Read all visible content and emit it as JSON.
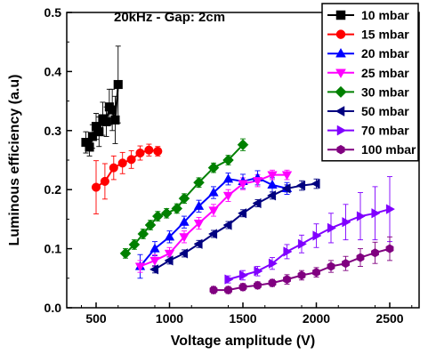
{
  "chart_data": {
    "type": "scatter",
    "title": "20kHz - Gap: 2cm",
    "xlabel": "Voltage amplitude (V)",
    "ylabel": "Luminous efficiency (a.u)",
    "xlim": [
      300,
      2700
    ],
    "ylim": [
      0.0,
      0.5
    ],
    "x_ticks": [
      500,
      1000,
      1500,
      2000,
      2500
    ],
    "y_ticks": [
      0.0,
      0.1,
      0.2,
      0.3,
      0.4,
      0.5
    ],
    "x_tick_labels": [
      "500",
      "1000",
      "1500",
      "2000",
      "2500"
    ],
    "y_tick_labels": [
      "0.0",
      "0.1",
      "0.2",
      "0.3",
      "0.4",
      "0.5"
    ],
    "legend_position": "top-right",
    "grid": false,
    "series": [
      {
        "name": "10 mbar",
        "color": "#000000",
        "marker": "square",
        "points": [
          {
            "x": 430,
            "y": 0.28,
            "err": 0.018
          },
          {
            "x": 455,
            "y": 0.272,
            "err": 0.015
          },
          {
            "x": 475,
            "y": 0.29,
            "err": 0.02
          },
          {
            "x": 500,
            "y": 0.307,
            "err": 0.022
          },
          {
            "x": 520,
            "y": 0.298,
            "err": 0.025
          },
          {
            "x": 545,
            "y": 0.32,
            "err": 0.028
          },
          {
            "x": 570,
            "y": 0.315,
            "err": 0.025
          },
          {
            "x": 590,
            "y": 0.34,
            "err": 0.03
          },
          {
            "x": 610,
            "y": 0.335,
            "err": 0.035
          },
          {
            "x": 630,
            "y": 0.318,
            "err": 0.04
          },
          {
            "x": 650,
            "y": 0.378,
            "err": 0.065
          }
        ]
      },
      {
        "name": "15 mbar",
        "color": "#ff0000",
        "marker": "circle",
        "points": [
          {
            "x": 500,
            "y": 0.204,
            "err": 0.045
          },
          {
            "x": 560,
            "y": 0.214,
            "err": 0.03
          },
          {
            "x": 620,
            "y": 0.237,
            "err": 0.02
          },
          {
            "x": 680,
            "y": 0.245,
            "err": 0.018
          },
          {
            "x": 740,
            "y": 0.251,
            "err": 0.015
          },
          {
            "x": 800,
            "y": 0.262,
            "err": 0.012
          },
          {
            "x": 860,
            "y": 0.267,
            "err": 0.01
          },
          {
            "x": 920,
            "y": 0.265,
            "err": 0.008
          }
        ]
      },
      {
        "name": "20 mbar",
        "color": "#0000ff",
        "marker": "triangle-up",
        "points": [
          {
            "x": 800,
            "y": 0.07,
            "err": 0.02
          },
          {
            "x": 900,
            "y": 0.1,
            "err": 0.012
          },
          {
            "x": 1000,
            "y": 0.12,
            "err": 0.01
          },
          {
            "x": 1100,
            "y": 0.145,
            "err": 0.01
          },
          {
            "x": 1200,
            "y": 0.172,
            "err": 0.01
          },
          {
            "x": 1300,
            "y": 0.195,
            "err": 0.01
          },
          {
            "x": 1400,
            "y": 0.218,
            "err": 0.01
          },
          {
            "x": 1500,
            "y": 0.214,
            "err": 0.012
          },
          {
            "x": 1600,
            "y": 0.22,
            "err": 0.012
          },
          {
            "x": 1700,
            "y": 0.208,
            "err": 0.012
          },
          {
            "x": 1800,
            "y": 0.202,
            "err": 0.01
          }
        ]
      },
      {
        "name": "25 mbar",
        "color": "#ff00ff",
        "marker": "triangle-down",
        "points": [
          {
            "x": 800,
            "y": 0.07,
            "err": 0.01
          },
          {
            "x": 900,
            "y": 0.08,
            "err": 0.01
          },
          {
            "x": 1000,
            "y": 0.092,
            "err": 0.01
          },
          {
            "x": 1100,
            "y": 0.12,
            "err": 0.01
          },
          {
            "x": 1200,
            "y": 0.143,
            "err": 0.01
          },
          {
            "x": 1300,
            "y": 0.165,
            "err": 0.01
          },
          {
            "x": 1400,
            "y": 0.19,
            "err": 0.01
          },
          {
            "x": 1500,
            "y": 0.21,
            "err": 0.01
          },
          {
            "x": 1600,
            "y": 0.215,
            "err": 0.01
          },
          {
            "x": 1700,
            "y": 0.225,
            "err": 0.008
          },
          {
            "x": 1800,
            "y": 0.225,
            "err": 0.008
          }
        ]
      },
      {
        "name": "30 mbar",
        "color": "#008000",
        "marker": "diamond",
        "points": [
          {
            "x": 700,
            "y": 0.092,
            "err": 0.008
          },
          {
            "x": 760,
            "y": 0.107,
            "err": 0.008
          },
          {
            "x": 820,
            "y": 0.125,
            "err": 0.008
          },
          {
            "x": 870,
            "y": 0.14,
            "err": 0.008
          },
          {
            "x": 920,
            "y": 0.155,
            "err": 0.008
          },
          {
            "x": 980,
            "y": 0.16,
            "err": 0.008
          },
          {
            "x": 1050,
            "y": 0.168,
            "err": 0.008
          },
          {
            "x": 1100,
            "y": 0.185,
            "err": 0.008
          },
          {
            "x": 1200,
            "y": 0.212,
            "err": 0.008
          },
          {
            "x": 1300,
            "y": 0.237,
            "err": 0.008
          },
          {
            "x": 1400,
            "y": 0.25,
            "err": 0.008
          },
          {
            "x": 1500,
            "y": 0.276,
            "err": 0.01
          }
        ]
      },
      {
        "name": "50 mbar",
        "color": "#000080",
        "marker": "triangle-left",
        "points": [
          {
            "x": 900,
            "y": 0.065,
            "err": 0.006
          },
          {
            "x": 1000,
            "y": 0.08,
            "err": 0.006
          },
          {
            "x": 1100,
            "y": 0.092,
            "err": 0.006
          },
          {
            "x": 1200,
            "y": 0.108,
            "err": 0.006
          },
          {
            "x": 1300,
            "y": 0.125,
            "err": 0.006
          },
          {
            "x": 1400,
            "y": 0.14,
            "err": 0.006
          },
          {
            "x": 1500,
            "y": 0.16,
            "err": 0.006
          },
          {
            "x": 1600,
            "y": 0.177,
            "err": 0.006
          },
          {
            "x": 1700,
            "y": 0.19,
            "err": 0.006
          },
          {
            "x": 1800,
            "y": 0.202,
            "err": 0.006
          },
          {
            "x": 1900,
            "y": 0.207,
            "err": 0.008
          },
          {
            "x": 2000,
            "y": 0.21,
            "err": 0.008
          }
        ]
      },
      {
        "name": "70 mbar",
        "color": "#8000ff",
        "marker": "triangle-right",
        "points": [
          {
            "x": 1400,
            "y": 0.048,
            "err": 0.006
          },
          {
            "x": 1500,
            "y": 0.055,
            "err": 0.008
          },
          {
            "x": 1600,
            "y": 0.062,
            "err": 0.008
          },
          {
            "x": 1700,
            "y": 0.075,
            "err": 0.01
          },
          {
            "x": 1800,
            "y": 0.095,
            "err": 0.012
          },
          {
            "x": 1900,
            "y": 0.108,
            "err": 0.015
          },
          {
            "x": 2000,
            "y": 0.122,
            "err": 0.02
          },
          {
            "x": 2100,
            "y": 0.135,
            "err": 0.025
          },
          {
            "x": 2200,
            "y": 0.145,
            "err": 0.03
          },
          {
            "x": 2300,
            "y": 0.155,
            "err": 0.04
          },
          {
            "x": 2400,
            "y": 0.16,
            "err": 0.045
          },
          {
            "x": 2500,
            "y": 0.167,
            "err": 0.055
          }
        ]
      },
      {
        "name": "100 mbar",
        "color": "#800080",
        "marker": "hexagon",
        "points": [
          {
            "x": 1300,
            "y": 0.03,
            "err": 0.006
          },
          {
            "x": 1400,
            "y": 0.03,
            "err": 0.006
          },
          {
            "x": 1500,
            "y": 0.035,
            "err": 0.006
          },
          {
            "x": 1600,
            "y": 0.038,
            "err": 0.006
          },
          {
            "x": 1700,
            "y": 0.042,
            "err": 0.006
          },
          {
            "x": 1800,
            "y": 0.048,
            "err": 0.008
          },
          {
            "x": 1900,
            "y": 0.055,
            "err": 0.008
          },
          {
            "x": 2000,
            "y": 0.06,
            "err": 0.008
          },
          {
            "x": 2100,
            "y": 0.07,
            "err": 0.01
          },
          {
            "x": 2200,
            "y": 0.075,
            "err": 0.012
          },
          {
            "x": 2300,
            "y": 0.085,
            "err": 0.015
          },
          {
            "x": 2400,
            "y": 0.093,
            "err": 0.018
          },
          {
            "x": 2500,
            "y": 0.1,
            "err": 0.02
          }
        ]
      }
    ]
  }
}
